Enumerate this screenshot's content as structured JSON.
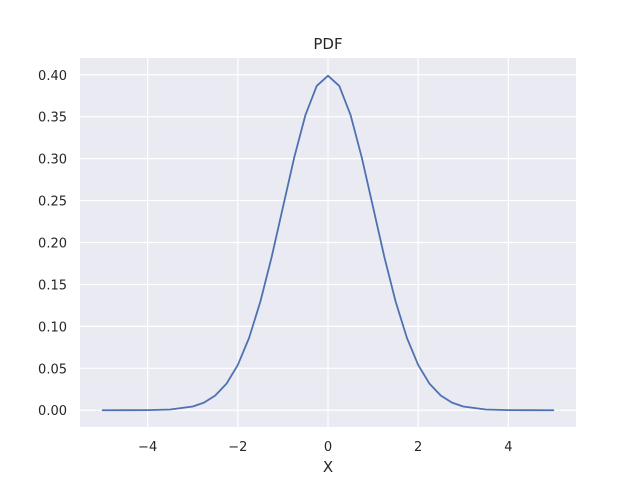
{
  "chart_data": {
    "type": "line",
    "title": "PDF",
    "xlabel": "X",
    "ylabel": "",
    "xlim": [
      -5.5,
      5.5
    ],
    "ylim": [
      -0.02,
      0.42
    ],
    "xticks": [
      -4,
      -2,
      0,
      2,
      4
    ],
    "xtick_labels": [
      "−4",
      "−2",
      "0",
      "2",
      "4"
    ],
    "yticks": [
      0.0,
      0.05,
      0.1,
      0.15,
      0.2,
      0.25,
      0.3,
      0.35,
      0.4
    ],
    "ytick_labels": [
      "0.00",
      "0.05",
      "0.10",
      "0.15",
      "0.20",
      "0.25",
      "0.30",
      "0.35",
      "0.40"
    ],
    "grid": true,
    "background": "#eaeaf2",
    "grid_color": "#ffffff",
    "series": [
      {
        "color": "#4c72b0",
        "x": [
          -5.0,
          -4.5,
          -4.0,
          -3.5,
          -3.0,
          -2.75,
          -2.5,
          -2.25,
          -2.0,
          -1.75,
          -1.5,
          -1.25,
          -1.0,
          -0.75,
          -0.5,
          -0.25,
          0.0,
          0.25,
          0.5,
          0.75,
          1.0,
          1.25,
          1.5,
          1.75,
          2.0,
          2.25,
          2.5,
          2.75,
          3.0,
          3.5,
          4.0,
          4.5,
          5.0
        ],
        "y": [
          1.5e-06,
          1.6e-05,
          0.000134,
          0.000873,
          0.004432,
          0.009094,
          0.017528,
          0.03174,
          0.053991,
          0.086277,
          0.129518,
          0.182649,
          0.241971,
          0.301137,
          0.352065,
          0.386668,
          0.398942,
          0.386668,
          0.352065,
          0.301137,
          0.241971,
          0.182649,
          0.129518,
          0.086277,
          0.053991,
          0.03174,
          0.017528,
          0.009094,
          0.004432,
          0.000873,
          0.000134,
          1.6e-05,
          1.5e-06
        ]
      }
    ]
  }
}
